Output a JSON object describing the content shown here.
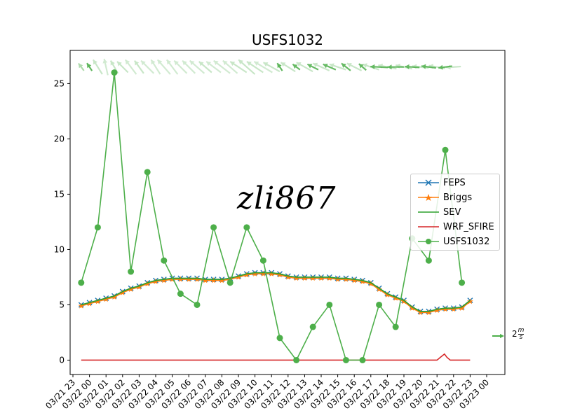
{
  "chart_data": {
    "type": "line",
    "title": "USFS1032",
    "xlabel": "",
    "ylabel": "",
    "ylim": [
      -1.3,
      28.0
    ],
    "yticks": [
      0,
      5,
      10,
      15,
      20,
      25
    ],
    "x_start": "03/21 23",
    "x_end": "03/23 00",
    "xtick_labels": [
      "03/21 23",
      "03/22 00",
      "03/22 01",
      "03/22 02",
      "03/22 03",
      "03/22 04",
      "03/22 05",
      "03/22 06",
      "03/22 07",
      "03/22 08",
      "03/22 09",
      "03/22 10",
      "03/22 11",
      "03/22 12",
      "03/22 13",
      "03/22 14",
      "03/22 15",
      "03/22 16",
      "03/22 17",
      "03/22 18",
      "03/22 19",
      "03/22 20",
      "03/22 21",
      "03/22 22",
      "03/22 23",
      "03/23 00"
    ],
    "grid": false,
    "legend_position": "center-right",
    "series": [
      {
        "name": "FEPS",
        "color": "#1f77b4",
        "marker": "x",
        "x": [
          0.5,
          1,
          1.5,
          2,
          2.5,
          3,
          3.5,
          4,
          4.5,
          5,
          5.5,
          6,
          6.5,
          7,
          7.5,
          8,
          8.5,
          9,
          9.5,
          10,
          10.5,
          11,
          11.5,
          12,
          12.5,
          13,
          13.5,
          14,
          14.5,
          15,
          15.5,
          16,
          16.5,
          17,
          17.5,
          18,
          18.5,
          19,
          19.5,
          20,
          20.5,
          21,
          21.5,
          22,
          22.5,
          23,
          23.5,
          24
        ],
        "values": [
          5.0,
          5.2,
          5.4,
          5.6,
          5.8,
          6.2,
          6.5,
          6.7,
          7.0,
          7.2,
          7.3,
          7.4,
          7.4,
          7.4,
          7.4,
          7.3,
          7.3,
          7.3,
          7.4,
          7.6,
          7.8,
          7.9,
          7.9,
          7.9,
          7.8,
          7.6,
          7.5,
          7.5,
          7.5,
          7.5,
          7.5,
          7.4,
          7.4,
          7.3,
          7.2,
          7.0,
          6.5,
          6.0,
          5.7,
          5.4,
          4.8,
          4.4,
          4.4,
          4.6,
          4.7,
          4.7,
          4.8,
          5.4
        ]
      },
      {
        "name": "Briggs",
        "color": "#ff7f0e",
        "marker": "star",
        "x": [
          0.5,
          1,
          1.5,
          2,
          2.5,
          3,
          3.5,
          4,
          4.5,
          5,
          5.5,
          6,
          6.5,
          7,
          7.5,
          8,
          8.5,
          9,
          9.5,
          10,
          10.5,
          11,
          11.5,
          12,
          12.5,
          13,
          13.5,
          14,
          14.5,
          15,
          15.5,
          16,
          16.5,
          17,
          17.5,
          18,
          18.5,
          19,
          19.5,
          20,
          20.5,
          21,
          21.5,
          22,
          22.5,
          23,
          23.5,
          24
        ],
        "values": [
          4.9,
          5.1,
          5.3,
          5.5,
          5.7,
          6.1,
          6.4,
          6.6,
          6.9,
          7.1,
          7.2,
          7.3,
          7.3,
          7.3,
          7.3,
          7.2,
          7.2,
          7.2,
          7.3,
          7.5,
          7.7,
          7.8,
          7.8,
          7.8,
          7.7,
          7.5,
          7.4,
          7.4,
          7.4,
          7.4,
          7.4,
          7.3,
          7.3,
          7.2,
          7.1,
          6.9,
          6.4,
          5.9,
          5.6,
          5.3,
          4.7,
          4.3,
          4.3,
          4.5,
          4.6,
          4.6,
          4.7,
          5.3
        ]
      },
      {
        "name": "SEV",
        "color": "#2ca02c",
        "marker": "none",
        "x": [
          0.5,
          1,
          1.5,
          2,
          2.5,
          3,
          3.5,
          4,
          4.5,
          5,
          5.5,
          6,
          6.5,
          7,
          7.5,
          8,
          8.5,
          9,
          9.5,
          10,
          10.5,
          11,
          11.5,
          12,
          12.5,
          13,
          13.5,
          14,
          14.5,
          15,
          15.5,
          16,
          16.5,
          17,
          17.5,
          18,
          18.5,
          19,
          19.5,
          20,
          20.5,
          21,
          21.5,
          22,
          22.5,
          23,
          23.5,
          24
        ],
        "values": [
          5.0,
          5.2,
          5.4,
          5.6,
          5.8,
          6.2,
          6.5,
          6.7,
          7.0,
          7.2,
          7.3,
          7.4,
          7.4,
          7.4,
          7.4,
          7.3,
          7.3,
          7.3,
          7.4,
          7.6,
          7.8,
          7.9,
          7.9,
          7.9,
          7.8,
          7.6,
          7.5,
          7.5,
          7.5,
          7.5,
          7.5,
          7.4,
          7.4,
          7.3,
          7.2,
          7.0,
          6.5,
          6.0,
          5.7,
          5.4,
          4.8,
          4.4,
          4.4,
          4.6,
          4.7,
          4.7,
          4.8,
          5.4
        ]
      },
      {
        "name": "WRF_SFIRE",
        "color": "#d62728",
        "marker": "none",
        "x": [
          0.5,
          20,
          21.5,
          22,
          22.2,
          22.45,
          22.6,
          22.8,
          24
        ],
        "values": [
          0,
          0,
          0,
          0,
          0.25,
          0.55,
          0.25,
          0,
          0
        ]
      },
      {
        "name": "USFS1032",
        "color": "#4daf4a",
        "marker": "circle",
        "x": [
          0.5,
          1.5,
          2.5,
          3.5,
          4.5,
          5.5,
          6.5,
          7.5,
          8.5,
          9.5,
          10.5,
          11.5,
          12.5,
          13.5,
          14.5,
          15.5,
          16.5,
          17.5,
          18.5,
          19.5,
          20.5,
          21.5,
          22.5,
          23.5
        ],
        "values": [
          7,
          12,
          26,
          8,
          17,
          9,
          6,
          5,
          12,
          7,
          12,
          9,
          2,
          0,
          3,
          5,
          0,
          0,
          5,
          3,
          11,
          9,
          19,
          7
        ]
      }
    ],
    "wind_barbs": {
      "color": "#4daf4a",
      "y": 26.5,
      "key_label": "2",
      "key_unit_num": "m",
      "key_unit_den": "s",
      "vectors": [
        {
          "x": 0.5,
          "u": -0.3,
          "v": 0.4,
          "a": 0.45
        },
        {
          "x": 1.0,
          "u": -0.2,
          "v": 0.3,
          "a": 0.9
        },
        {
          "x": 1.5,
          "u": -0.5,
          "v": 0.8,
          "a": 0.3
        },
        {
          "x": 2.0,
          "u": -0.2,
          "v": 0.9,
          "a": 0.25
        },
        {
          "x": 2.5,
          "u": -0.4,
          "v": 0.7,
          "a": 0.3
        },
        {
          "x": 3.0,
          "u": -0.6,
          "v": 0.6,
          "a": 0.3
        },
        {
          "x": 3.5,
          "u": -0.6,
          "v": 0.8,
          "a": 0.25
        },
        {
          "x": 4.0,
          "u": -0.5,
          "v": 0.7,
          "a": 0.3
        },
        {
          "x": 4.5,
          "u": -0.7,
          "v": 0.7,
          "a": 0.25
        },
        {
          "x": 5.0,
          "u": -0.5,
          "v": 0.8,
          "a": 0.25
        },
        {
          "x": 5.5,
          "u": -0.7,
          "v": 0.8,
          "a": 0.25
        },
        {
          "x": 6.0,
          "u": -0.6,
          "v": 0.8,
          "a": 0.25
        },
        {
          "x": 6.5,
          "u": -0.7,
          "v": 0.7,
          "a": 0.25
        },
        {
          "x": 7.0,
          "u": -0.7,
          "v": 0.7,
          "a": 0.25
        },
        {
          "x": 7.5,
          "u": -0.8,
          "v": 0.7,
          "a": 0.25
        },
        {
          "x": 8.0,
          "u": -0.7,
          "v": 0.6,
          "a": 0.3
        },
        {
          "x": 8.5,
          "u": -0.8,
          "v": 0.6,
          "a": 0.25
        },
        {
          "x": 9.0,
          "u": -0.9,
          "v": 0.7,
          "a": 0.25
        },
        {
          "x": 9.5,
          "u": -0.8,
          "v": 0.7,
          "a": 0.25
        },
        {
          "x": 10.0,
          "u": -0.9,
          "v": 0.6,
          "a": 0.3
        },
        {
          "x": 10.5,
          "u": -0.9,
          "v": 0.8,
          "a": 0.3
        },
        {
          "x": 11.0,
          "u": -0.9,
          "v": 0.6,
          "a": 0.3
        },
        {
          "x": 11.5,
          "u": -1.0,
          "v": 0.6,
          "a": 0.25
        },
        {
          "x": 12.0,
          "u": -0.9,
          "v": 0.5,
          "a": 0.3
        },
        {
          "x": 12.5,
          "u": -0.2,
          "v": 0.3,
          "a": 0.9
        },
        {
          "x": 13.0,
          "u": -0.8,
          "v": 0.5,
          "a": 0.3
        },
        {
          "x": 13.5,
          "u": -0.4,
          "v": 0.3,
          "a": 0.85
        },
        {
          "x": 14.0,
          "u": -0.9,
          "v": 0.5,
          "a": 0.3
        },
        {
          "x": 14.5,
          "u": -0.6,
          "v": 0.3,
          "a": 0.85
        },
        {
          "x": 15.0,
          "u": -0.9,
          "v": 0.4,
          "a": 0.3
        },
        {
          "x": 15.5,
          "u": -0.7,
          "v": 0.3,
          "a": 0.85
        },
        {
          "x": 16.0,
          "u": -0.9,
          "v": 0.3,
          "a": 0.3
        },
        {
          "x": 16.5,
          "u": -0.5,
          "v": 0.4,
          "a": 0.85
        },
        {
          "x": 17.0,
          "u": -0.8,
          "v": 0.4,
          "a": 0.3
        },
        {
          "x": 17.5,
          "u": -0.4,
          "v": 0.35,
          "a": 0.85
        },
        {
          "x": 18.0,
          "u": -0.9,
          "v": 0.3,
          "a": 0.3
        },
        {
          "x": 18.5,
          "u": -0.95,
          "v": 0.05,
          "a": 0.85
        },
        {
          "x": 19.0,
          "u": -1.0,
          "v": 0.2,
          "a": 0.3
        },
        {
          "x": 19.5,
          "u": -0.9,
          "v": 0.0,
          "a": 0.85
        },
        {
          "x": 20.0,
          "u": -0.9,
          "v": 0.2,
          "a": 0.3
        },
        {
          "x": 20.5,
          "u": -0.8,
          "v": 0.05,
          "a": 0.85
        },
        {
          "x": 21.0,
          "u": -0.9,
          "v": 0.1,
          "a": 0.3
        },
        {
          "x": 21.5,
          "u": -0.8,
          "v": 0.1,
          "a": 0.85
        },
        {
          "x": 22.0,
          "u": -0.9,
          "v": 0.15,
          "a": 0.3
        },
        {
          "x": 22.5,
          "u": -0.75,
          "v": -0.1,
          "a": 0.85
        },
        {
          "x": 23.0,
          "u": -0.8,
          "v": -0.05,
          "a": 0.3
        }
      ]
    }
  },
  "watermark": "zli867"
}
